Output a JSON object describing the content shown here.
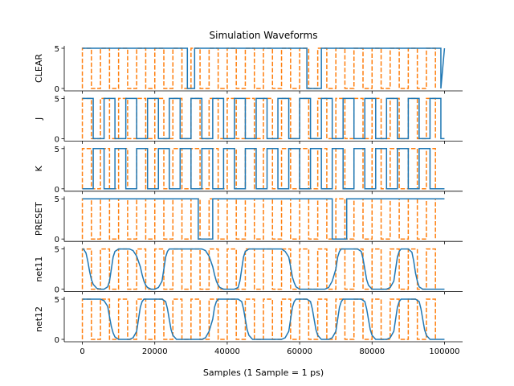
{
  "chart_data": {
    "type": "line",
    "title": "Simulation Waveforms",
    "xlabel": "Samples (1 Sample = 1 ps)",
    "xlim": [
      -5000,
      105000
    ],
    "ylim": [
      -0.3,
      5.3
    ],
    "x_ticks": [
      0,
      20000,
      40000,
      60000,
      80000,
      100000
    ],
    "x_tick_labels": [
      "0",
      "20000",
      "40000",
      "60000",
      "80000",
      "100000"
    ],
    "y_ticks": [
      0,
      5
    ],
    "y_tick_labels": [
      "0",
      "5"
    ],
    "colors": {
      "signal": "#1f77b4",
      "clock": "#ff7f0e"
    },
    "clock": {
      "period": 5000,
      "high_time": 2500,
      "high": 5,
      "low": 0,
      "end": 97500
    },
    "panels": [
      {
        "ylabel": "CLEAR",
        "x": [
          0,
          29000,
          29000,
          31000,
          31000,
          62000,
          62000,
          66000,
          66000,
          99000,
          99000,
          100000
        ],
        "y": [
          5,
          5,
          0,
          0,
          5,
          5,
          0,
          0,
          5,
          5,
          0,
          5
        ]
      },
      {
        "ylabel": "J",
        "x": [
          0,
          3000,
          3000,
          6000,
          6000,
          9000,
          9000,
          12000,
          12000,
          15000,
          15000,
          18000,
          18000,
          21000,
          21000,
          24000,
          24000,
          27000,
          27000,
          30000,
          30000,
          33000,
          33000,
          36000,
          36000,
          39000,
          39000,
          42000,
          42000,
          45000,
          45000,
          48000,
          48000,
          51000,
          51000,
          54000,
          54000,
          57000,
          57000,
          60000,
          60000,
          63000,
          63000,
          66000,
          66000,
          69000,
          69000,
          72000,
          72000,
          75000,
          75000,
          78000,
          78000,
          81000,
          81000,
          84000,
          84000,
          87000,
          87000,
          90000,
          90000,
          93000,
          93000,
          96000,
          96000,
          99000,
          99000,
          100000
        ],
        "y": [
          5,
          5,
          0,
          0,
          5,
          5,
          0,
          0,
          5,
          5,
          0,
          0,
          5,
          5,
          0,
          0,
          5,
          5,
          0,
          0,
          5,
          5,
          0,
          0,
          5,
          5,
          0,
          0,
          5,
          5,
          0,
          0,
          5,
          5,
          0,
          0,
          5,
          5,
          0,
          0,
          5,
          5,
          0,
          0,
          5,
          5,
          0,
          0,
          5,
          5,
          0,
          0,
          5,
          5,
          0,
          0,
          5,
          5,
          0,
          0,
          5,
          5,
          0,
          0,
          5,
          5,
          0,
          0
        ]
      },
      {
        "ylabel": "K",
        "x": [
          0,
          3000,
          3000,
          6000,
          6000,
          9000,
          9000,
          12000,
          12000,
          15000,
          15000,
          18000,
          18000,
          21000,
          21000,
          24000,
          24000,
          27000,
          27000,
          30000,
          30000,
          33000,
          33000,
          36000,
          36000,
          39000,
          39000,
          42000,
          42000,
          45000,
          45000,
          48000,
          48000,
          51000,
          51000,
          54000,
          54000,
          57000,
          57000,
          60000,
          60000,
          63000,
          63000,
          66000,
          66000,
          69000,
          69000,
          72000,
          72000,
          75000,
          75000,
          78000,
          78000,
          81000,
          81000,
          84000,
          84000,
          87000,
          87000,
          90000,
          90000,
          93000,
          93000,
          96000,
          96000,
          99000,
          99000,
          100000
        ],
        "y": [
          0,
          0,
          5,
          5,
          0,
          0,
          5,
          5,
          0,
          0,
          5,
          5,
          0,
          0,
          5,
          5,
          0,
          0,
          5,
          5,
          0,
          0,
          5,
          5,
          0,
          0,
          5,
          5,
          0,
          0,
          5,
          5,
          0,
          0,
          5,
          5,
          0,
          0,
          5,
          5,
          0,
          0,
          5,
          5,
          0,
          0,
          5,
          5,
          0,
          0,
          5,
          5,
          0,
          0,
          5,
          5,
          0,
          0,
          5,
          5,
          0,
          0,
          5,
          5,
          0,
          0,
          0,
          0
        ]
      },
      {
        "ylabel": "PRESET",
        "x": [
          0,
          32000,
          32000,
          36000,
          36000,
          69000,
          69000,
          73000,
          73000,
          100000
        ],
        "y": [
          5,
          5,
          0,
          0,
          5,
          5,
          0,
          0,
          5,
          5
        ]
      },
      {
        "ylabel": "net11",
        "x": [
          0,
          300,
          1000,
          1500,
          2000,
          2500,
          3000,
          4000,
          5000,
          6000,
          7000,
          7500,
          8000,
          8500,
          9000,
          10000,
          13000,
          14000,
          15000,
          16000,
          16500,
          17000,
          17500,
          18000,
          19000,
          20000,
          21000,
          22000,
          22500,
          23000,
          23500,
          24000,
          25000,
          33000,
          34000,
          35000,
          36000,
          36500,
          37000,
          37500,
          38000,
          39000,
          42000,
          43000,
          43500,
          44000,
          44500,
          45000,
          46000,
          55000,
          56000,
          57000,
          57500,
          58000,
          58500,
          59000,
          60000,
          67000,
          68000,
          69000,
          70000,
          70500,
          71000,
          71500,
          72000,
          73000,
          76000,
          77000,
          77500,
          78000,
          78500,
          79000,
          80000,
          84000,
          85000,
          86000,
          86500,
          87000,
          87500,
          88000,
          89000,
          90000,
          91000,
          91500,
          92000,
          92500,
          93000,
          94000,
          100000
        ],
        "y": [
          5,
          5,
          4.5,
          3.5,
          2.2,
          1.2,
          0.6,
          0.1,
          0,
          0,
          0.3,
          1.0,
          2.5,
          4.0,
          4.7,
          5,
          5,
          4.8,
          4.1,
          2.8,
          1.8,
          1.0,
          0.5,
          0.2,
          0,
          0,
          0.2,
          1.0,
          2.5,
          4.0,
          4.7,
          5,
          5,
          5,
          4.8,
          4.1,
          2.8,
          1.8,
          1.0,
          0.5,
          0.2,
          0,
          0,
          0.2,
          1.0,
          2.5,
          4.0,
          4.7,
          5,
          5,
          4.7,
          4.0,
          2.8,
          1.5,
          0.8,
          0.3,
          0,
          0,
          0.2,
          1.0,
          2.5,
          4.0,
          4.7,
          5,
          5,
          5,
          5,
          4.7,
          3.8,
          2.5,
          1.2,
          0.5,
          0,
          0,
          0.2,
          1.0,
          2.5,
          4.0,
          4.7,
          5,
          5,
          5,
          4.6,
          3.5,
          2.0,
          1.0,
          0.3,
          0,
          0
        ]
      },
      {
        "ylabel": "net12",
        "x": [
          0,
          5000,
          6000,
          7000,
          7500,
          8000,
          8500,
          9000,
          10000,
          13000,
          14000,
          15000,
          15500,
          16000,
          16500,
          17000,
          18000,
          22000,
          23000,
          23500,
          24000,
          24500,
          25000,
          26000,
          33000,
          34000,
          35000,
          36000,
          36500,
          37000,
          37500,
          38000,
          39000,
          43000,
          44000,
          44500,
          45000,
          45500,
          46000,
          47000,
          55000,
          56000,
          57000,
          57500,
          58000,
          58500,
          59000,
          60000,
          62000,
          63000,
          63500,
          64000,
          64500,
          65000,
          66000,
          68000,
          69000,
          70000,
          70500,
          71000,
          71500,
          72000,
          73000,
          77000,
          78000,
          78500,
          79000,
          79500,
          80000,
          81000,
          84000,
          85000,
          86000,
          86500,
          87000,
          87500,
          88000,
          89000,
          92000,
          93000,
          93500,
          94000,
          94500,
          95000,
          96000,
          100000
        ],
        "y": [
          5,
          5,
          4.8,
          4.1,
          2.8,
          1.6,
          0.8,
          0.3,
          0,
          0,
          0.2,
          1.0,
          2.5,
          4.0,
          4.7,
          5,
          5,
          5,
          4.7,
          3.8,
          2.5,
          1.2,
          0.5,
          0,
          0,
          0.2,
          1.0,
          2.5,
          4.0,
          4.7,
          5,
          5,
          5,
          5,
          4.7,
          3.8,
          2.5,
          1.2,
          0.5,
          0,
          0,
          0.2,
          1.0,
          2.5,
          4.0,
          4.7,
          5,
          5,
          5,
          4.7,
          3.8,
          2.5,
          1.2,
          0.5,
          0,
          0,
          0.2,
          1.0,
          2.5,
          4.0,
          4.7,
          5,
          5,
          5,
          4.7,
          3.8,
          2.5,
          1.2,
          0.5,
          0,
          0,
          0.2,
          1.0,
          2.5,
          4.0,
          4.7,
          5,
          5,
          5,
          4.7,
          3.8,
          2.5,
          1.2,
          0.5,
          0,
          0
        ]
      }
    ]
  }
}
